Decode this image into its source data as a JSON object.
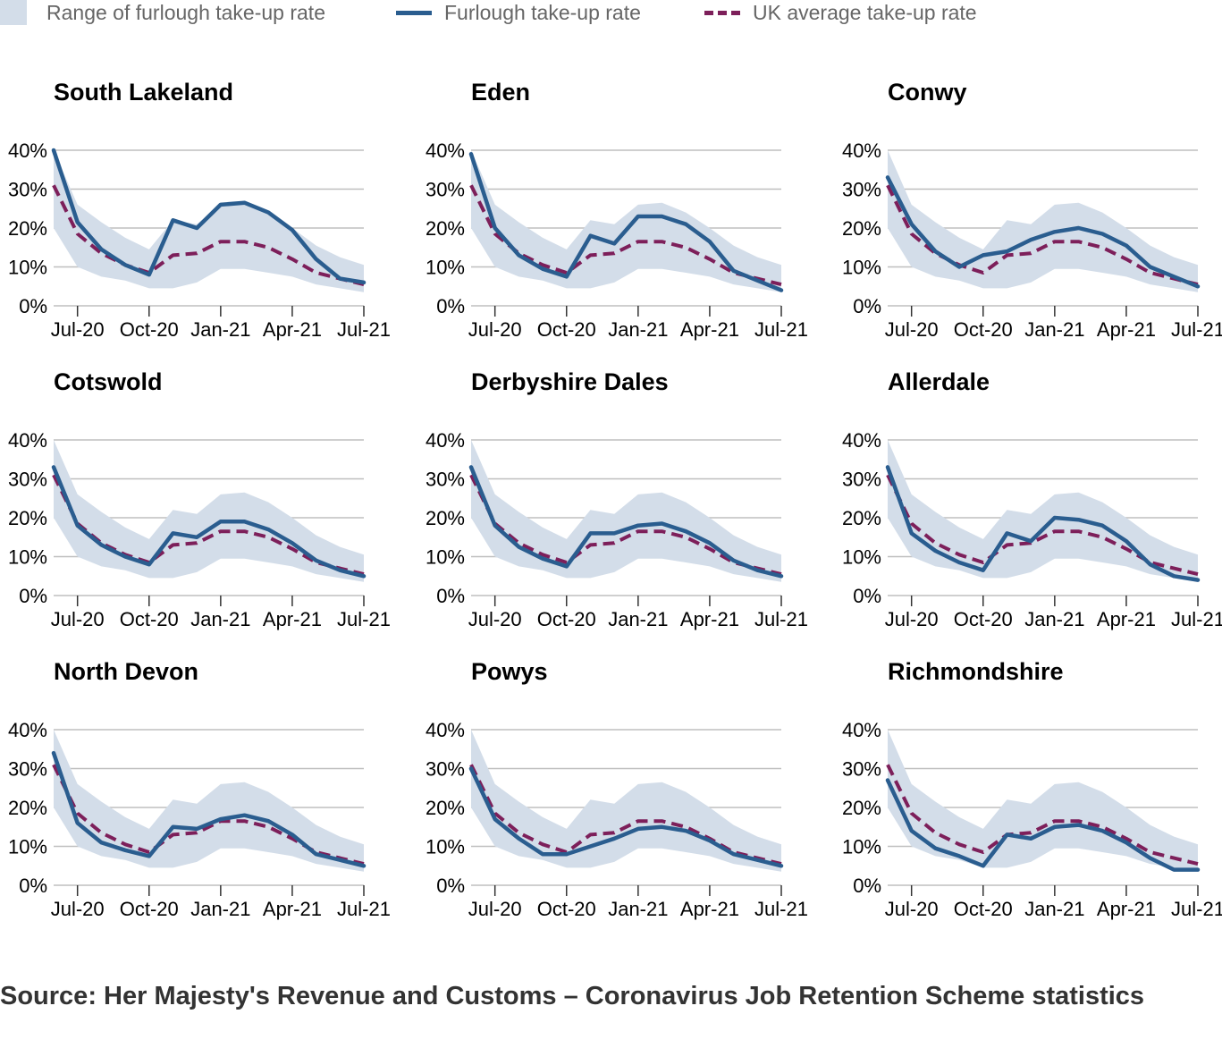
{
  "legend": {
    "range_label": "Range of furlough take-up rate",
    "furlough_label": "Furlough take-up rate",
    "uk_label": "UK average take-up rate"
  },
  "colors": {
    "range_fill": "#d3dde9",
    "furlough_line": "#2a5d8f",
    "uk_line": "#7d1f5a",
    "grid": "#bfbfbf"
  },
  "source": "Source: Her Majesty's Revenue and Customs – Coronavirus Job Retention Scheme statistics",
  "chart_data": {
    "type": "line",
    "layout": "3x3 small multiples",
    "x": [
      "Jun-20",
      "Jul-20",
      "Aug-20",
      "Sep-20",
      "Oct-20",
      "Nov-20",
      "Dec-20",
      "Jan-21",
      "Feb-21",
      "Mar-21",
      "Apr-21",
      "May-21",
      "Jun-21",
      "Jul-21"
    ],
    "x_ticks": [
      "Jul-20",
      "Oct-20",
      "Jan-21",
      "Apr-21",
      "Jul-21"
    ],
    "y_ticks": [
      "0%",
      "10%",
      "20%",
      "30%",
      "40%"
    ],
    "ylim": [
      0,
      40
    ],
    "unit": "%",
    "legend_position": "top",
    "range_band": {
      "low": [
        20,
        10,
        7.5,
        6.5,
        4.5,
        4.5,
        6,
        9.5,
        9.5,
        8.5,
        7.5,
        5.5,
        4.5,
        3.5
      ],
      "high": [
        40,
        26,
        21.5,
        17.5,
        14.5,
        22,
        21,
        26,
        26.5,
        24,
        20,
        15.5,
        12.5,
        10.5
      ]
    },
    "uk_average": [
      31,
      18.5,
      13.5,
      10.5,
      8.5,
      13,
      13.5,
      16.5,
      16.5,
      15,
      12,
      8.5,
      7,
      5.5
    ],
    "panels": [
      {
        "title": "South Lakeland",
        "values": [
          40,
          21.5,
          14.5,
          10.5,
          8,
          22,
          20,
          26,
          26.5,
          24,
          19.5,
          12,
          7,
          6
        ]
      },
      {
        "title": "Eden",
        "values": [
          39,
          20,
          13,
          9.5,
          7.5,
          18,
          16,
          23,
          23,
          21,
          16.5,
          9,
          6.5,
          4
        ]
      },
      {
        "title": "Conwy",
        "values": [
          33,
          21,
          14,
          10,
          13,
          14,
          17,
          19,
          20,
          18.5,
          15.5,
          10,
          7.5,
          5
        ]
      },
      {
        "title": "Cotswold",
        "values": [
          33,
          18,
          13,
          10,
          8,
          16,
          15,
          19,
          19,
          17,
          13.5,
          9,
          6.5,
          5
        ]
      },
      {
        "title": "Derbyshire Dales",
        "values": [
          33,
          18,
          12.5,
          9.5,
          7.5,
          16,
          16,
          18,
          18.5,
          16.5,
          13.5,
          9,
          6.5,
          5
        ]
      },
      {
        "title": "Allerdale",
        "values": [
          33,
          16,
          11.5,
          8.5,
          6.5,
          16,
          14,
          20,
          19.5,
          18,
          14,
          8,
          5,
          4
        ]
      },
      {
        "title": "North Devon",
        "values": [
          34,
          16,
          11,
          9,
          7.5,
          15,
          14.5,
          17,
          18,
          16.5,
          13,
          8,
          6.5,
          5
        ]
      },
      {
        "title": "Powys",
        "values": [
          30,
          17,
          12,
          8,
          8,
          10,
          12,
          14.5,
          15,
          14,
          11.5,
          8,
          6.5,
          5
        ]
      },
      {
        "title": "Richmondshire",
        "values": [
          27,
          14,
          9.5,
          7.5,
          5,
          13,
          12,
          15,
          15.5,
          14,
          11,
          7,
          4,
          4
        ]
      }
    ]
  }
}
